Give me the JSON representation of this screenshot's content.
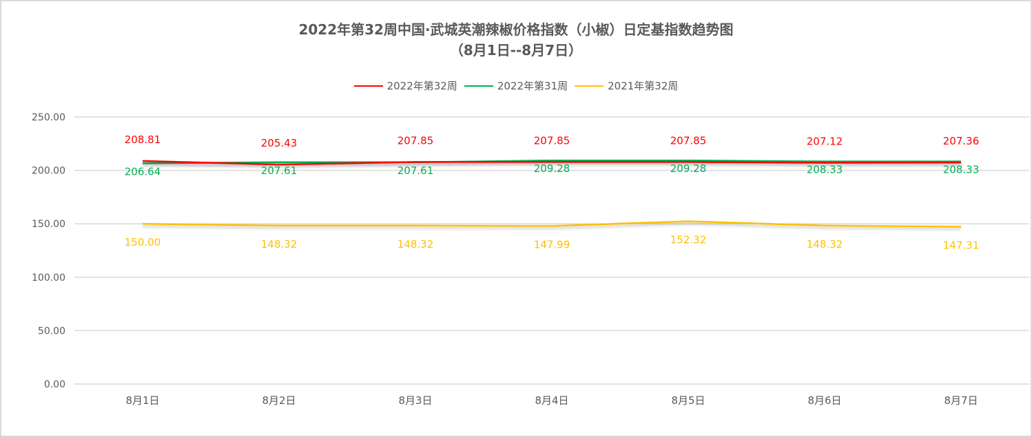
{
  "title": {
    "line1": "2022年第32周中国·武城英潮辣椒价格指数（小椒）日定基指数趋势图",
    "line2": "（8月1日--8月7日）"
  },
  "legend": [
    {
      "label": "2022年第32周",
      "color": "#ff0000"
    },
    {
      "label": "2022年第31周",
      "color": "#00b050"
    },
    {
      "label": "2021年第32周",
      "color": "#ffc000"
    }
  ],
  "chart_data": {
    "type": "line",
    "title": "2022年第32周中国·武城英潮辣椒价格指数（小椒）日定基指数趋势图（8月1日--8月7日）",
    "xlabel": "",
    "ylabel": "",
    "categories": [
      "8月1日",
      "8月2日",
      "8月3日",
      "8月4日",
      "8月5日",
      "8月6日",
      "8月7日"
    ],
    "series": [
      {
        "name": "2022年第32周",
        "color": "#ff0000",
        "values": [
          208.81,
          205.43,
          207.85,
          207.85,
          207.85,
          207.12,
          207.36
        ]
      },
      {
        "name": "2022年第31周",
        "color": "#00b050",
        "values": [
          206.64,
          207.61,
          207.61,
          209.28,
          209.28,
          208.33,
          208.33
        ]
      },
      {
        "name": "2021年第32周",
        "color": "#ffc000",
        "values": [
          150.0,
          148.32,
          148.32,
          147.99,
          152.32,
          148.32,
          147.31
        ]
      }
    ],
    "yticks": [
      "0.00",
      "50.00",
      "100.00",
      "150.00",
      "200.00",
      "250.00"
    ],
    "ylim": [
      0,
      250
    ],
    "grid": true,
    "legend_position": "top"
  }
}
